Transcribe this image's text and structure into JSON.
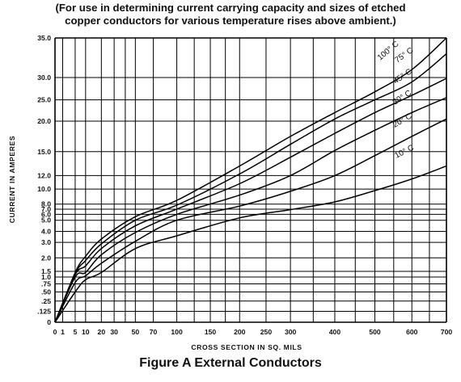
{
  "header": {
    "subtitle_line1": "(For use in determining current carrying capacity and sizes of etched",
    "subtitle_line2": "copper conductors for various temperature rises above ambient.)"
  },
  "caption": "Figure A   External Conductors",
  "chart_data": {
    "type": "line",
    "title": "Figure A   External Conductors",
    "xlabel": "CROSS SECTION IN SQ. MILS",
    "ylabel": "CURRENT IN AMPERES",
    "x_scale": "nonlinear (0.6 power)",
    "y_scale": "nonlinear",
    "xlim": [
      0,
      700
    ],
    "ylim": [
      0,
      35
    ],
    "grid": true,
    "legend": "labels on curves",
    "x_ticks": [
      "0",
      "1",
      "5",
      "10",
      "20",
      "30",
      "50",
      "70",
      "100",
      "150",
      "200",
      "250",
      "300",
      "400",
      "500",
      "600",
      "700"
    ],
    "y_ticks": [
      "0",
      ".125",
      ".25",
      ".50",
      ".75",
      "1.0",
      "1.5",
      "2.0",
      "3.0",
      "4.0",
      "5.0",
      "6.0",
      "7.0",
      "8.0",
      "10.0",
      "12.0",
      "15.0",
      "20.0",
      "25.0",
      "30.0",
      "35.0"
    ],
    "x": [
      0,
      5,
      10,
      20,
      50,
      100,
      200,
      300,
      400,
      500,
      600,
      700
    ],
    "series": [
      {
        "name": "10° C",
        "values": [
          0,
          0.5,
          0.9,
          1.4,
          2.6,
          3.6,
          5.4,
          6.9,
          8.3,
          9.8,
          11.5,
          13.2
        ]
      },
      {
        "name": "20° C",
        "values": [
          0,
          0.8,
          1.1,
          1.8,
          3.1,
          5.0,
          7.6,
          9.7,
          12.0,
          14.5,
          17.5,
          20.5
        ]
      },
      {
        "name": "30° C",
        "values": [
          0,
          1.0,
          1.4,
          2.2,
          3.9,
          6.0,
          9.2,
          12.0,
          15.2,
          18.5,
          22.0,
          25.5
        ]
      },
      {
        "name": "45° C",
        "values": [
          0,
          1.2,
          1.7,
          2.6,
          4.5,
          7.0,
          10.8,
          14.3,
          18.0,
          22.0,
          26.0,
          29.8
        ]
      },
      {
        "name": "75° C",
        "values": [
          0,
          1.3,
          1.9,
          2.9,
          5.0,
          7.8,
          12.2,
          16.2,
          20.5,
          25.0,
          29.0,
          33.0
        ]
      },
      {
        "name": "100° C",
        "values": [
          0,
          1.4,
          2.1,
          3.3,
          5.6,
          8.5,
          13.2,
          17.5,
          22.0,
          26.8,
          31.0,
          35.0
        ]
      }
    ]
  }
}
